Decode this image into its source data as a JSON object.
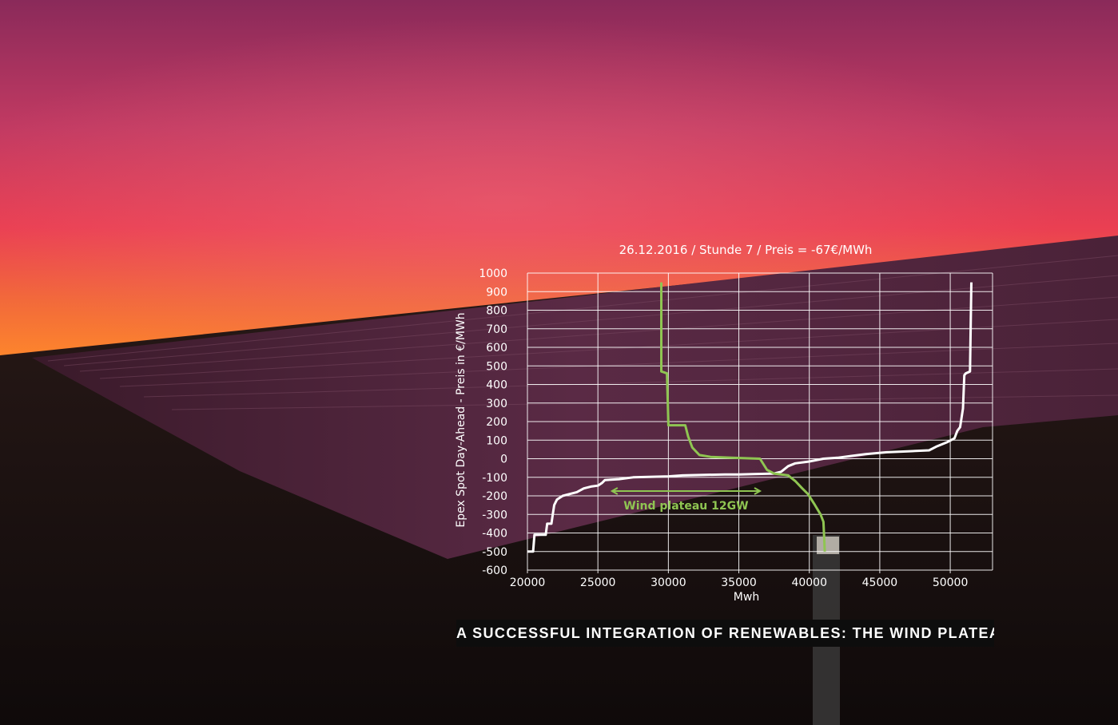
{
  "chart_data": {
    "type": "line",
    "title": "26.12.2016 / Stunde 7 / Preis = -67€/MWh",
    "xlabel": "Mwh",
    "ylabel": "Epex Spot Day-Ahead - Preis in €/MWh",
    "xlim": [
      20000,
      53000
    ],
    "ylim": [
      -600,
      1000
    ],
    "xticks": [
      20000,
      25000,
      30000,
      35000,
      40000,
      45000,
      50000
    ],
    "yticks": [
      1000,
      900,
      800,
      700,
      600,
      500,
      400,
      300,
      200,
      100,
      0,
      -100,
      -200,
      -300,
      -400,
      -500,
      -600
    ],
    "grid": true,
    "series": [
      {
        "color": "#ffffff",
        "points": [
          [
            20000,
            -500
          ],
          [
            20400,
            -500
          ],
          [
            20500,
            -410
          ],
          [
            21300,
            -410
          ],
          [
            21400,
            -350
          ],
          [
            21700,
            -350
          ],
          [
            21800,
            -300
          ],
          [
            21900,
            -250
          ],
          [
            22100,
            -220
          ],
          [
            22500,
            -200
          ],
          [
            23000,
            -190
          ],
          [
            23500,
            -180
          ],
          [
            24000,
            -160
          ],
          [
            24500,
            -150
          ],
          [
            25000,
            -145
          ],
          [
            25300,
            -130
          ],
          [
            25500,
            -115
          ],
          [
            26500,
            -110
          ],
          [
            27500,
            -100
          ],
          [
            30000,
            -95
          ],
          [
            31000,
            -90
          ],
          [
            32500,
            -87
          ],
          [
            34000,
            -85
          ],
          [
            35000,
            -85
          ],
          [
            36000,
            -83
          ],
          [
            37500,
            -80
          ],
          [
            38000,
            -70
          ],
          [
            38500,
            -40
          ],
          [
            39000,
            -25
          ],
          [
            40000,
            -15
          ],
          [
            41000,
            0
          ],
          [
            42000,
            5
          ],
          [
            43000,
            15
          ],
          [
            44000,
            25
          ],
          [
            45500,
            35
          ],
          [
            47000,
            40
          ],
          [
            48500,
            45
          ],
          [
            49000,
            65
          ],
          [
            49800,
            90
          ],
          [
            50300,
            110
          ],
          [
            50500,
            150
          ],
          [
            50700,
            170
          ],
          [
            50900,
            270
          ],
          [
            51000,
            450
          ],
          [
            51100,
            460
          ],
          [
            51400,
            470
          ],
          [
            51500,
            950
          ]
        ]
      },
      {
        "color": "#8fc552",
        "points": [
          [
            29500,
            950
          ],
          [
            29500,
            470
          ],
          [
            29900,
            460
          ],
          [
            30000,
            180
          ],
          [
            31200,
            180
          ],
          [
            31400,
            120
          ],
          [
            31700,
            60
          ],
          [
            32200,
            20
          ],
          [
            33000,
            10
          ],
          [
            34500,
            5
          ],
          [
            36500,
            0
          ],
          [
            37000,
            -60
          ],
          [
            37500,
            -80
          ],
          [
            38500,
            -90
          ],
          [
            39000,
            -120
          ],
          [
            39500,
            -160
          ],
          [
            39900,
            -190
          ],
          [
            40400,
            -250
          ],
          [
            40800,
            -300
          ],
          [
            41000,
            -340
          ],
          [
            41100,
            -500
          ]
        ]
      }
    ],
    "annotations": [
      {
        "text": "Wind plateau  12GW",
        "x_from": 26000,
        "x_to": 36500,
        "y": -200,
        "color": "#8fc552"
      }
    ]
  },
  "caption": "A SUCCESSFUL INTEGRATION OF RENEWABLES: THE WIND PLATEAU"
}
